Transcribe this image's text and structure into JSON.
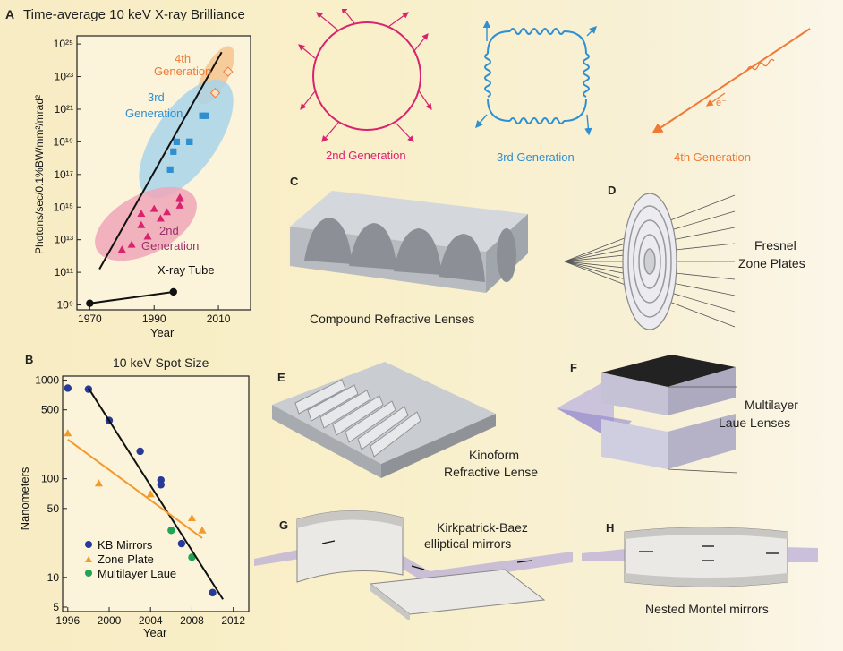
{
  "panel_letters": {
    "a": "A",
    "b": "B",
    "c": "C",
    "d": "D",
    "e": "E",
    "f": "F",
    "g": "G",
    "h": "H"
  },
  "colors": {
    "gen2": "#d9236e",
    "gen3": "#2f8fd0",
    "gen4": "#ee7a35",
    "gen2_fill": "#eea6b8",
    "gen3_fill": "#a9d3ea",
    "gen4_fill": "#f6c48f",
    "kb": "#283a97",
    "zone": "#f39a2e",
    "laue": "#23a455"
  },
  "panel_a": {
    "title": "Time-average 10 keV X-ray Brilliance",
    "ylabel": "Photons/sec/0.1%BW/mm²/mrad²",
    "xlabel": "Year",
    "gen4_label": [
      "4th",
      "Generation"
    ],
    "gen3_label": [
      "3rd",
      "Generation"
    ],
    "gen2_label": [
      "2nd",
      "Generation"
    ],
    "tube_label": "X-ray Tube"
  },
  "panel_b": {
    "title": "10 keV Spot Size",
    "ylabel": "Nanometers",
    "xlabel": "Year",
    "legend": [
      "KB Mirrors",
      "Zone Plate",
      "Multilayer Laue"
    ]
  },
  "generations": {
    "gen2": "2nd Generation",
    "gen3": "3rd Generation",
    "gen4": "4th Generation",
    "electron": "e⁻"
  },
  "captions": {
    "c": "Compound Refractive Lenses",
    "d": [
      "Fresnel",
      "Zone Plates"
    ],
    "e": [
      "Kinoform",
      "Refractive Lense"
    ],
    "f": [
      "Multilayer",
      "Laue Lenses"
    ],
    "g": [
      "Kirkpatrick-Baez",
      "elliptical mirrors"
    ],
    "h": "Nested Montel mirrors"
  },
  "chart_data": [
    {
      "type": "scatter",
      "title": "Time-average 10 keV X-ray Brilliance",
      "xlabel": "Year",
      "ylabel": "Photons/sec/0.1%BW/mm²/mrad²",
      "xlim": [
        1966,
        2020
      ],
      "ylim": [
        8.7,
        25.5
      ],
      "y_scale": "log10",
      "x_ticks": [
        1970,
        1990,
        2010
      ],
      "y_ticks": [
        9,
        11,
        13,
        15,
        17,
        19,
        21,
        23,
        25
      ],
      "y_tick_labels": [
        "10⁹",
        "10¹¹",
        "10¹³",
        "10¹⁵",
        "10¹⁷",
        "10¹⁹",
        "10²¹",
        "10²³",
        "10²⁵"
      ],
      "series": [
        {
          "name": "X-ray Tube",
          "marker": "circle",
          "x": [
            1970,
            1996
          ],
          "y": [
            9.1,
            9.8
          ]
        },
        {
          "name": "2nd Generation",
          "marker": "triangle",
          "x": [
            1980,
            1983,
            1986,
            1986,
            1988,
            1990,
            1992,
            1994,
            1998,
            1998,
            1998
          ],
          "y": [
            12.4,
            12.7,
            14.6,
            13.9,
            13.2,
            14.9,
            14.3,
            14.7,
            15.1,
            15.5,
            15.6
          ]
        },
        {
          "name": "3rd Generation",
          "marker": "square",
          "x": [
            1995,
            1996,
            1997,
            2001,
            2001,
            2005,
            2006
          ],
          "y": [
            17.3,
            18.4,
            19.0,
            19.0,
            19.0,
            20.6,
            20.6
          ]
        },
        {
          "name": "4th Generation",
          "marker": "diamond",
          "x": [
            2009,
            2013
          ],
          "y": [
            22.0,
            23.3
          ]
        },
        {
          "name": "trend",
          "marker": "none",
          "x": [
            1973,
            2011
          ],
          "y": [
            11.2,
            24.5
          ]
        }
      ]
    },
    {
      "type": "scatter",
      "title": "10 keV Spot Size",
      "xlabel": "Year",
      "ylabel": "Nanometers",
      "xlim": [
        1995.5,
        2013.5
      ],
      "ylim": [
        4.5,
        1100
      ],
      "y_scale": "log10",
      "x_ticks": [
        1996,
        2000,
        2004,
        2008,
        2012
      ],
      "y_ticks": [
        5,
        10,
        50,
        100,
        500,
        1000
      ],
      "series": [
        {
          "name": "KB Mirrors",
          "x": [
            1996,
            1998,
            2000,
            2003,
            2005,
            2005,
            2007,
            2010
          ],
          "y": [
            830,
            810,
            390,
            190,
            97,
            87,
            22,
            7
          ]
        },
        {
          "name": "Zone Plate",
          "x": [
            1996,
            1999,
            2004,
            2008,
            2009
          ],
          "y": [
            290,
            90,
            70,
            40,
            30
          ]
        },
        {
          "name": "Multilayer Laue",
          "x": [
            2006,
            2008
          ],
          "y": [
            30,
            16
          ]
        },
        {
          "name": "KB trend",
          "marker": "none",
          "x": [
            1998,
            2011
          ],
          "y": [
            830,
            6
          ]
        },
        {
          "name": "Zone Plate trend",
          "marker": "none",
          "x": [
            1996,
            2009
          ],
          "y": [
            250,
            25
          ]
        }
      ]
    }
  ]
}
